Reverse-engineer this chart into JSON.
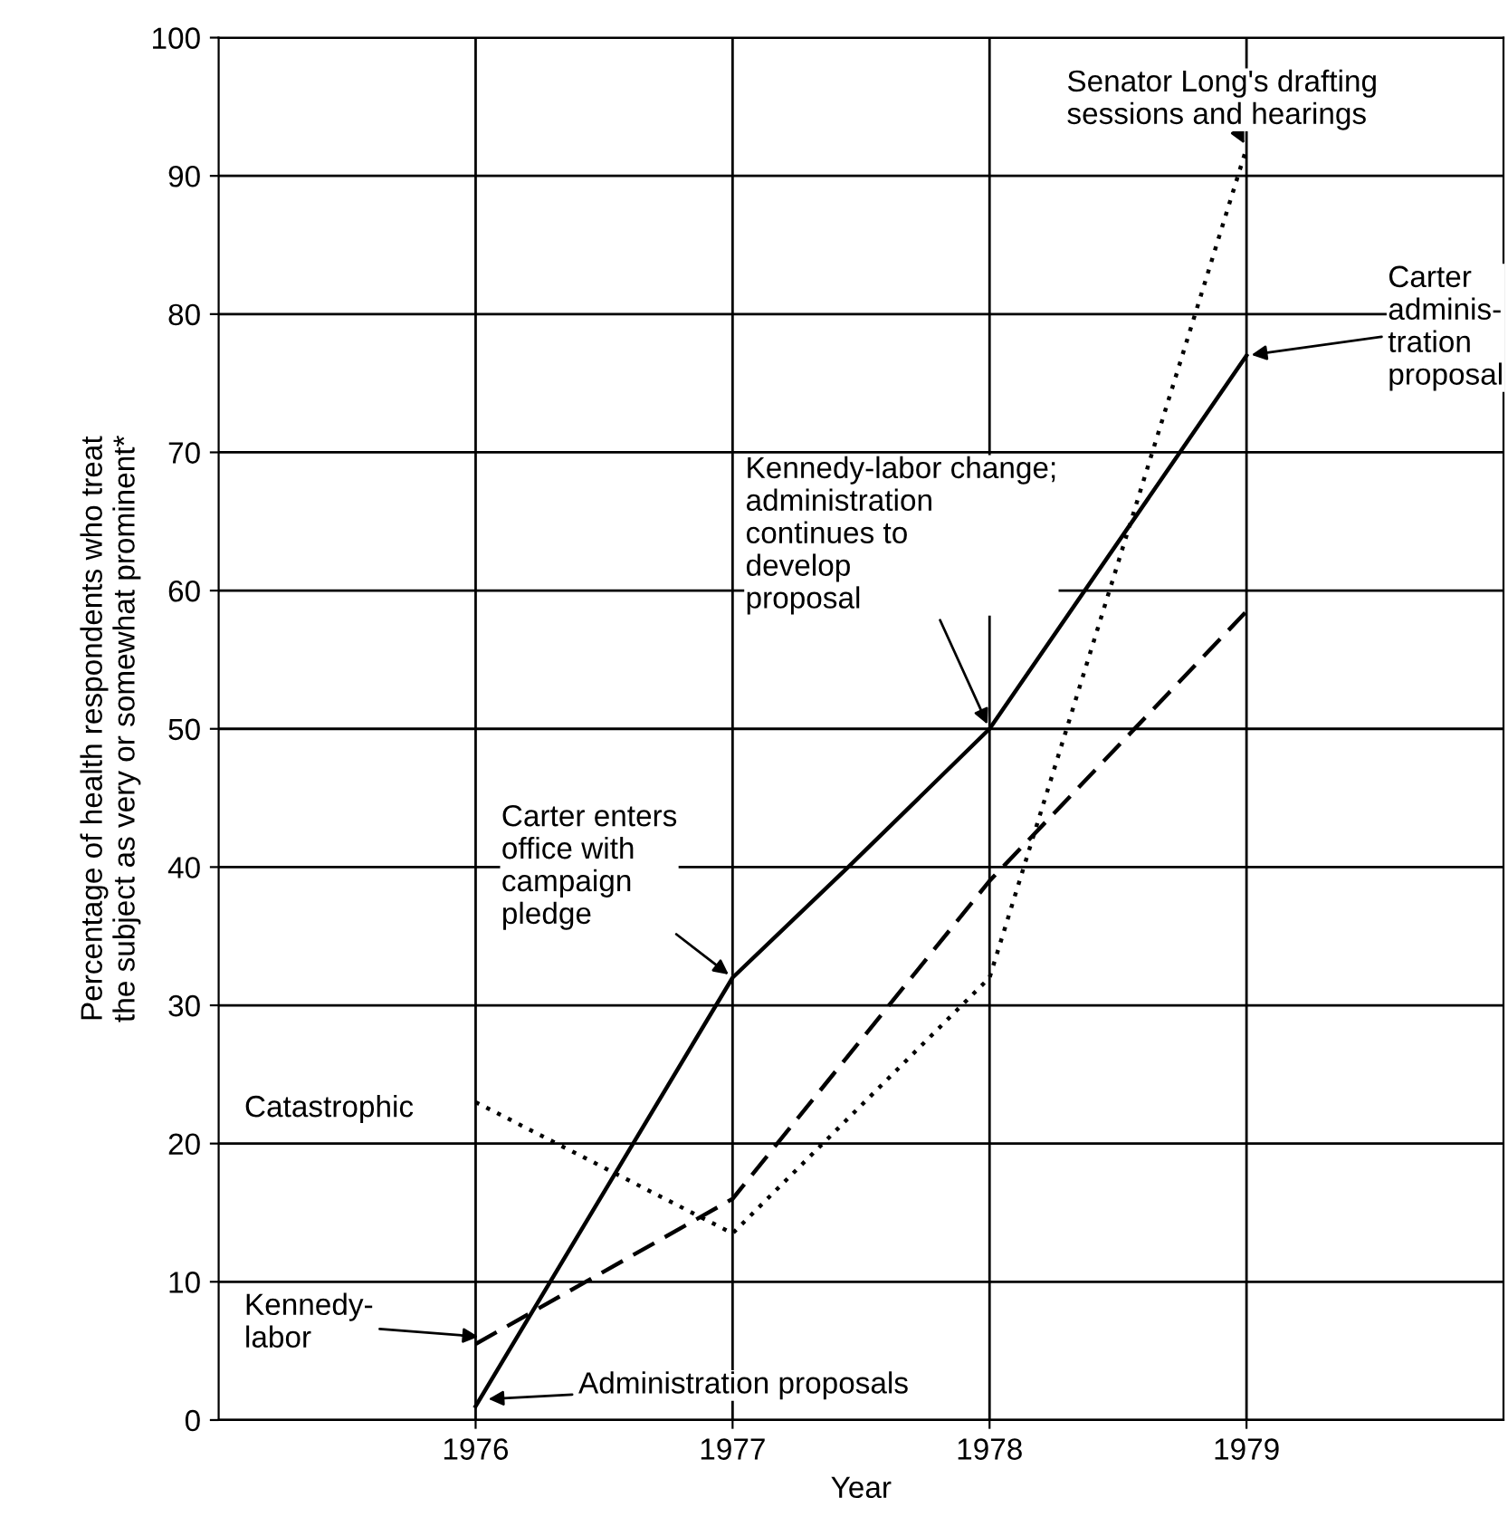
{
  "chart_data": {
    "type": "line",
    "xlabel": "Year",
    "ylabel": "Percentage of health respondents who treat\nthe subject as very or somewhat prominent*",
    "xlim": [
      1975,
      1980
    ],
    "ylim": [
      0,
      100
    ],
    "xticks": [
      1976,
      1977,
      1978,
      1979
    ],
    "yticks": [
      0,
      10,
      20,
      30,
      40,
      50,
      60,
      70,
      80,
      90,
      100
    ],
    "grid": true,
    "series": [
      {
        "name": "Administration proposals",
        "color": "#000000",
        "line_style": "solid",
        "x": [
          1976,
          1977,
          1977.45,
          1978,
          1979
        ],
        "values": [
          1,
          32,
          40,
          50,
          77
        ]
      },
      {
        "name": "Kennedy-\nlabor",
        "color": "#000000",
        "line_style": "dashed",
        "x": [
          1976,
          1977,
          1978,
          1979
        ],
        "values": [
          5.5,
          16,
          39,
          58.5
        ]
      },
      {
        "name": "Catastrophic",
        "color": "#000000",
        "line_style": "dotted",
        "x": [
          1976,
          1977,
          1978,
          1979
        ],
        "values": [
          23,
          13.5,
          32,
          92
        ]
      }
    ],
    "annotations": [
      {
        "text": "Senator Long's drafting\nsessions and hearings",
        "x": 1979,
        "y": 92
      },
      {
        "text": "Carter\nadminis-\ntration\nproposal",
        "x": 1979,
        "y": 77
      },
      {
        "text": "Kennedy-labor change;\nadministration\ncontinues to\ndevelop\nproposal",
        "x": 1978,
        "y": 50
      },
      {
        "text": "Carter enters\noffice with\ncampaign\npledge",
        "x": 1977,
        "y": 32
      }
    ]
  }
}
